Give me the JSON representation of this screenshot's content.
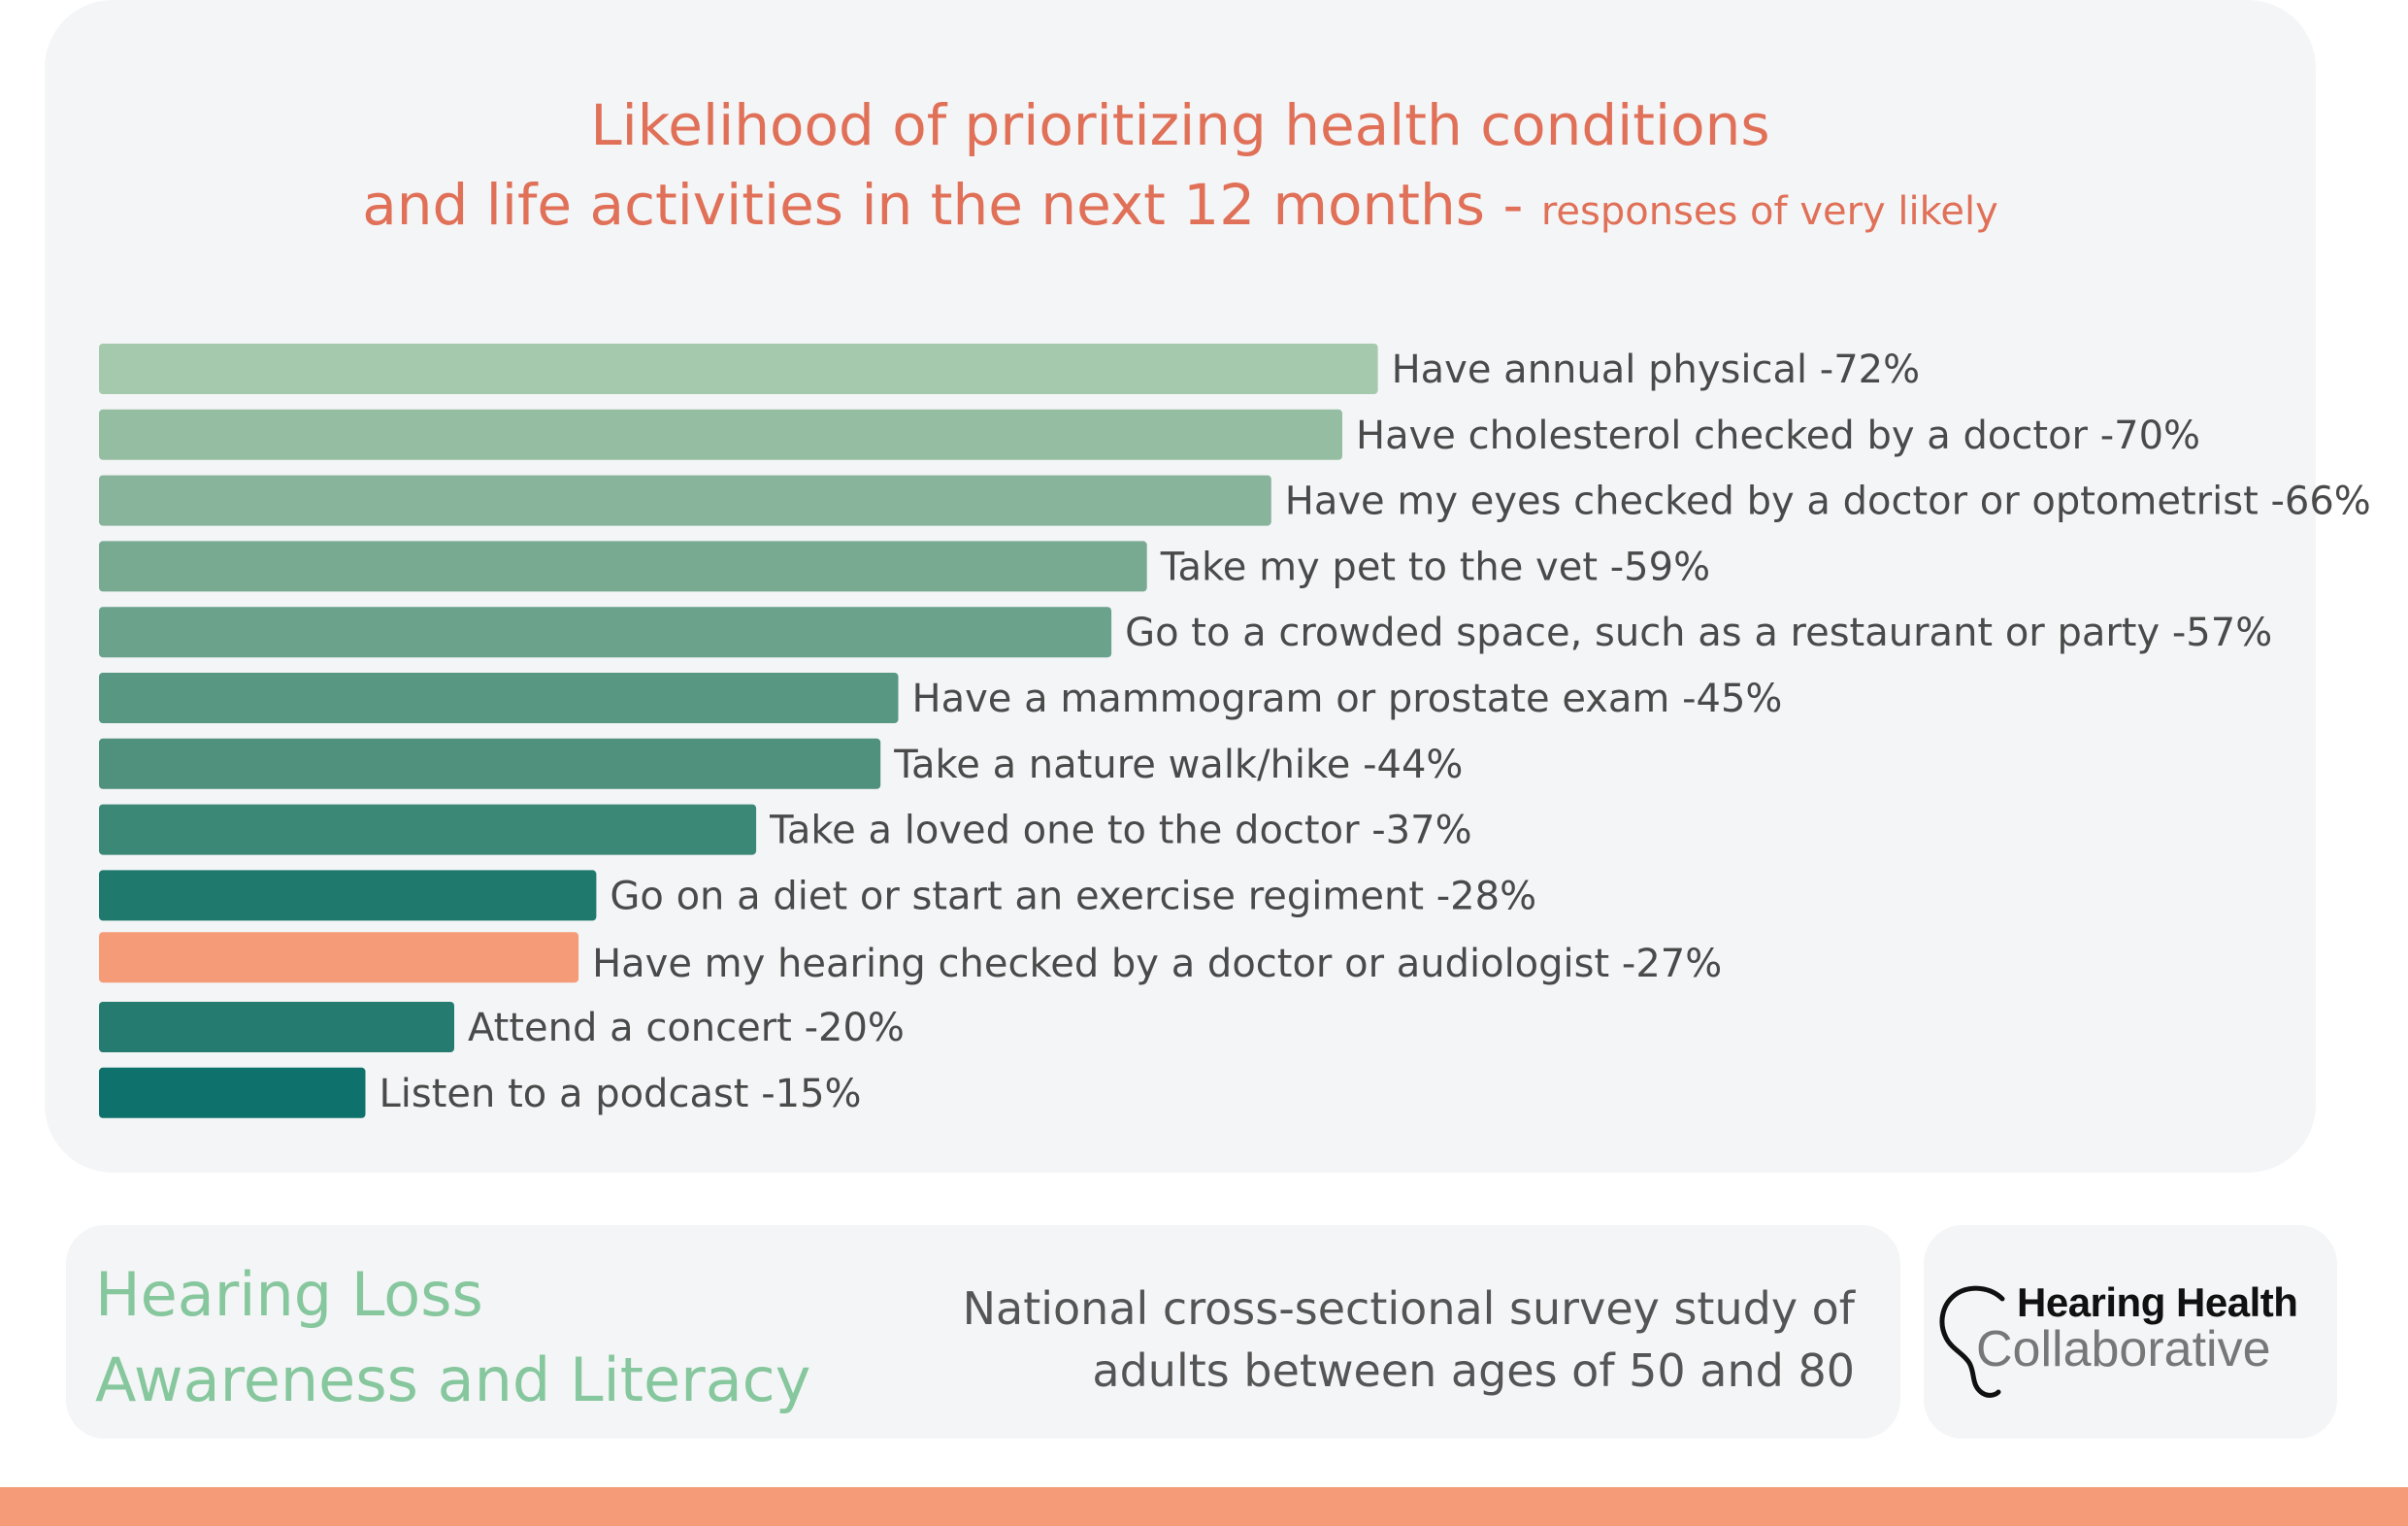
{
  "chart_data": {
    "type": "bar",
    "orientation": "horizontal",
    "title_main": "Likelihood of prioritizing health conditions",
    "title_line2": "and life activities in the next 12 months -",
    "title_sub": "responses of very likely",
    "categories": [
      "Have annual physical",
      "Have cholesterol checked by a doctor",
      "Have my eyes checked by a doctor or optometrist",
      "Take my pet to the vet",
      "Go to a crowded space, such as a restaurant or party",
      "Have a mammogram or prostate exam",
      "Take a nature walk/hike",
      "Take a loved one to the doctor",
      "Go on a diet or start an exercise regiment",
      "Have my hearing checked by a doctor or audiologist",
      "Attend a concert",
      "Listen to a podcast"
    ],
    "values": [
      72,
      70,
      66,
      59,
      57,
      45,
      44,
      37,
      28,
      27,
      20,
      15
    ],
    "labels": [
      "Have annual physical -72%",
      "Have cholesterol checked by a doctor -70%",
      "Have my eyes checked by a doctor or optometrist -66%",
      "Take my pet to the vet -59%",
      "Go to a crowded space, such as a restaurant or party -57%",
      "Have a mammogram or prostate exam -45%",
      "Take a nature walk/hike -44%",
      "Take a loved one to the doctor -37%",
      "Go on a diet or start an exercise regiment -28%",
      "Have my hearing checked by a doctor or audiologist -27%",
      "Attend a concert -20%",
      "Listen to a podcast -15%"
    ],
    "bar_colors": [
      "#a5c9ad",
      "#95bda2",
      "#88b49b",
      "#78aa92",
      "#6aa28c",
      "#589883",
      "#4f917d",
      "#3b8877",
      "#1f7a6d",
      "#f59b77",
      "#257b6f",
      "#0f716b"
    ],
    "highlight_index": 9,
    "highlight_color": "#e07057",
    "label_color": "#4a4a4a",
    "xlim": [
      0,
      100
    ]
  },
  "footer": {
    "topic_line1": "Hearing Loss",
    "topic_line2": "Awareness and Literacy",
    "study_line1": "National cross-sectional survey study of",
    "study_line2": "adults between ages of 50 and 80",
    "logo_line1": "Hearing Health",
    "logo_line2": "Collaborative"
  },
  "colors": {
    "title": "#e07057",
    "topic": "#86c79d",
    "band": "#f59b77"
  }
}
